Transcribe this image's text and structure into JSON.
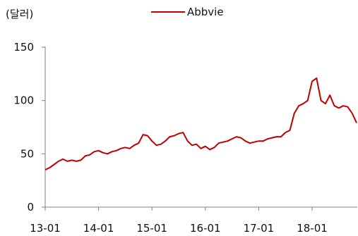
{
  "chart_data": {
    "type": "line",
    "unit_label": "(달러)",
    "legend": [
      "Abbvie"
    ],
    "legend_placement": "top-center",
    "grid": false,
    "ylim": [
      0,
      150
    ],
    "yticks": [
      0,
      50,
      100,
      150
    ],
    "xlim": [
      "2013-01",
      "2018-11"
    ],
    "xticks": [
      "13-01",
      "14-01",
      "15-01",
      "16-01",
      "17-01",
      "18-01"
    ],
    "colors": {
      "series": "#C00000",
      "axis": "#808080"
    },
    "series": [
      {
        "name": "Abbvie",
        "x": [
          "2013-01",
          "2013-02",
          "2013-03",
          "2013-04",
          "2013-05",
          "2013-06",
          "2013-07",
          "2013-08",
          "2013-09",
          "2013-10",
          "2013-11",
          "2013-12",
          "2014-01",
          "2014-02",
          "2014-03",
          "2014-04",
          "2014-05",
          "2014-06",
          "2014-07",
          "2014-08",
          "2014-09",
          "2014-10",
          "2014-11",
          "2014-12",
          "2015-01",
          "2015-02",
          "2015-03",
          "2015-04",
          "2015-05",
          "2015-06",
          "2015-07",
          "2015-08",
          "2015-09",
          "2015-10",
          "2015-11",
          "2015-12",
          "2016-01",
          "2016-02",
          "2016-03",
          "2016-04",
          "2016-05",
          "2016-06",
          "2016-07",
          "2016-08",
          "2016-09",
          "2016-10",
          "2016-11",
          "2016-12",
          "2017-01",
          "2017-02",
          "2017-03",
          "2017-04",
          "2017-05",
          "2017-06",
          "2017-07",
          "2017-08",
          "2017-09",
          "2017-10",
          "2017-11",
          "2017-12",
          "2018-01",
          "2018-02",
          "2018-03",
          "2018-04",
          "2018-05",
          "2018-06",
          "2018-07",
          "2018-08",
          "2018-09",
          "2018-10",
          "2018-11"
        ],
        "values": [
          35,
          37,
          40,
          43,
          45,
          43,
          44,
          43,
          44,
          48,
          49,
          52,
          53,
          51,
          50,
          52,
          53,
          55,
          56,
          55,
          58,
          60,
          68,
          67,
          62,
          58,
          59,
          62,
          66,
          67,
          69,
          70,
          62,
          58,
          59,
          55,
          57,
          54,
          56,
          60,
          61,
          62,
          64,
          66,
          65,
          62,
          60,
          61,
          62,
          62,
          64,
          65,
          66,
          66,
          70,
          72,
          88,
          95,
          97,
          100,
          118,
          121,
          100,
          97,
          105,
          95,
          93,
          95,
          94,
          88,
          79
        ]
      }
    ]
  }
}
